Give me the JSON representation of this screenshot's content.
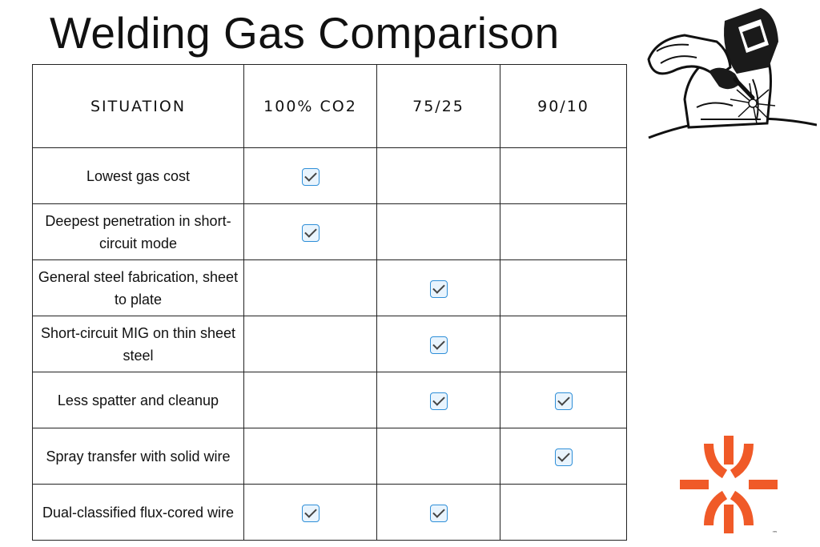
{
  "page": {
    "title": "Welding Gas Comparison"
  },
  "table": {
    "headers": [
      "SITUATION",
      "100% CO2",
      "75/25",
      "90/10"
    ],
    "rows": [
      {
        "situation": "Lowest gas cost",
        "checks": [
          true,
          false,
          false
        ]
      },
      {
        "situation": "Deepest penetration in short-circuit mode",
        "checks": [
          true,
          false,
          false
        ]
      },
      {
        "situation": "General steel fabrication, sheet to plate",
        "checks": [
          false,
          true,
          false
        ]
      },
      {
        "situation": "Short-circuit MIG on thin sheet steel",
        "checks": [
          false,
          true,
          false
        ]
      },
      {
        "situation": "Less spatter and cleanup",
        "checks": [
          false,
          true,
          true
        ]
      },
      {
        "situation": "Spray transfer with solid wire",
        "checks": [
          false,
          false,
          true
        ]
      },
      {
        "situation": "Dual-classified flux-cored wire",
        "checks": [
          true,
          true,
          false
        ]
      }
    ]
  },
  "icons": {
    "check": "checkbox-checked-icon",
    "illustration": "welder-icon",
    "logo": "brand-logo-icon"
  },
  "logo": {
    "trademark": "™",
    "color": "#f05a28"
  },
  "colors": {
    "check_border": "#2f8fd8",
    "text": "#111111"
  }
}
